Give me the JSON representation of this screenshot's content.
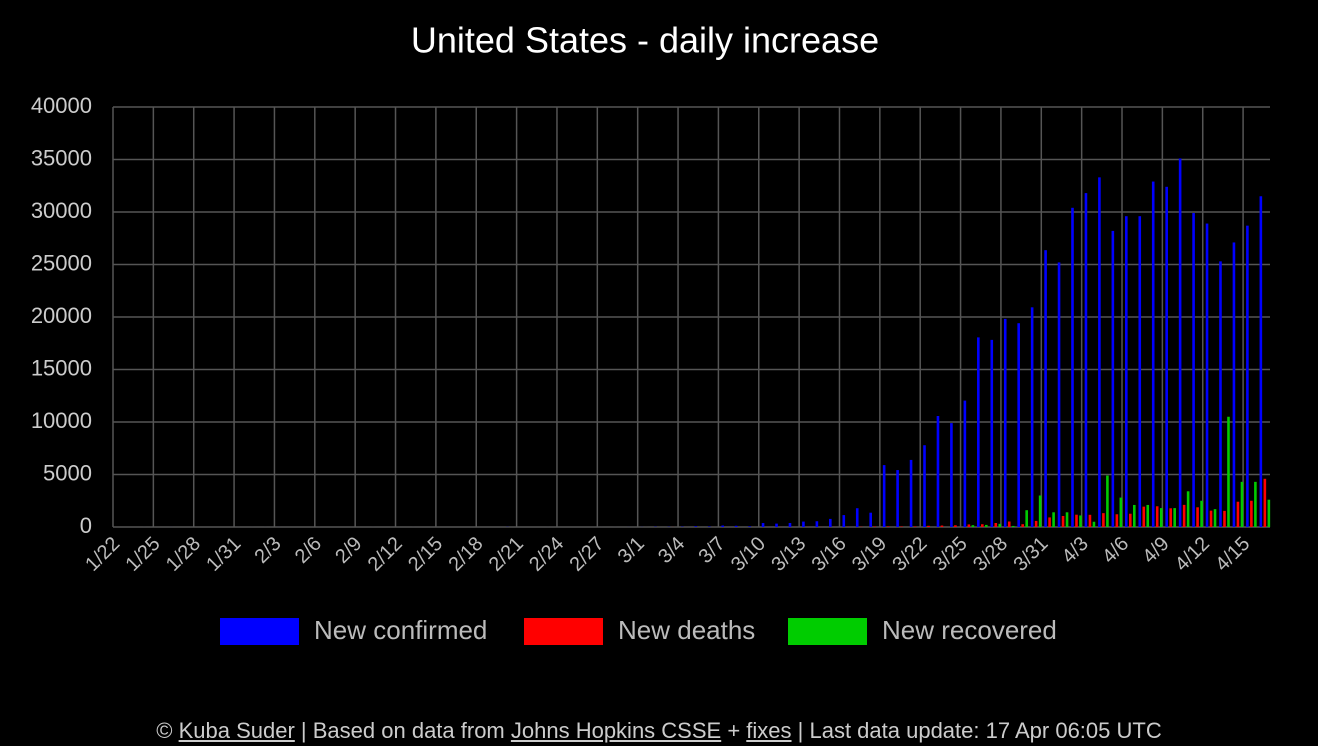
{
  "chart_data": {
    "type": "bar",
    "title": "United States - daily increase",
    "categories": [
      "1/22",
      null,
      null,
      "1/25",
      null,
      null,
      "1/28",
      null,
      null,
      "1/31",
      null,
      null,
      "2/3",
      null,
      null,
      "2/6",
      null,
      null,
      "2/9",
      null,
      null,
      "2/12",
      null,
      null,
      "2/15",
      null,
      null,
      "2/18",
      null,
      null,
      "2/21",
      null,
      null,
      "2/24",
      null,
      null,
      "2/27",
      null,
      null,
      "3/1",
      null,
      null,
      "3/4",
      null,
      null,
      "3/7",
      null,
      null,
      "3/10",
      null,
      null,
      "3/13",
      null,
      null,
      "3/16",
      null,
      null,
      "3/19",
      null,
      null,
      "3/22",
      null,
      null,
      "3/25",
      null,
      null,
      "3/28",
      null,
      null,
      "3/31",
      null,
      null,
      "4/3",
      null,
      null,
      "4/6",
      null,
      null,
      "4/9",
      null,
      null,
      "4/12",
      null,
      null,
      "4/15",
      null
    ],
    "series": [
      {
        "name": "New confirmed",
        "color": "#0000ff",
        "values": [
          0,
          0,
          1,
          0,
          3,
          0,
          0,
          0,
          0,
          1,
          1,
          1,
          3,
          0,
          0,
          1,
          0,
          0,
          0,
          1,
          0,
          0,
          1,
          0,
          0,
          0,
          0,
          0,
          0,
          13,
          0,
          0,
          1,
          0,
          0,
          0,
          1,
          1,
          4,
          8,
          23,
          20,
          31,
          68,
          45,
          140,
          116,
          65,
          376,
          322,
          382,
          516,
          548,
          772,
          1133,
          1789,
          1362,
          5894,
          5423,
          6389,
          7787,
          10571,
          9893,
          12038,
          18058,
          17821,
          19821,
          19408,
          20921,
          26365,
          25200,
          30400,
          31800,
          33300,
          28200,
          29600,
          29600,
          32900,
          32400,
          35100,
          29900,
          28900,
          25300,
          27100,
          28700,
          31500
        ]
      },
      {
        "name": "New deaths",
        "color": "#ff0000",
        "values": [
          0,
          0,
          0,
          0,
          0,
          0,
          0,
          0,
          0,
          0,
          0,
          0,
          0,
          0,
          0,
          0,
          0,
          0,
          0,
          0,
          0,
          0,
          0,
          0,
          0,
          0,
          0,
          0,
          0,
          0,
          0,
          0,
          0,
          0,
          0,
          0,
          0,
          0,
          0,
          1,
          1,
          5,
          3,
          1,
          3,
          3,
          1,
          4,
          6,
          8,
          7,
          11,
          8,
          9,
          18,
          23,
          41,
          51,
          49,
          46,
          114,
          139,
          165,
          246,
          264,
          381,
          524,
          265,
          580,
          912,
          1049,
          1172,
          1161,
          1320,
          1212,
          1264,
          1939,
          1973,
          1783,
          2108,
          1877,
          1557,
          1536,
          2408,
          2500,
          4591
        ]
      },
      {
        "name": "New recovered",
        "color": "#00cc00",
        "values": [
          0,
          0,
          0,
          0,
          0,
          0,
          0,
          0,
          0,
          0,
          0,
          0,
          0,
          0,
          0,
          0,
          0,
          0,
          0,
          0,
          0,
          0,
          0,
          0,
          0,
          0,
          0,
          0,
          0,
          0,
          0,
          0,
          0,
          0,
          0,
          0,
          0,
          0,
          0,
          0,
          0,
          0,
          0,
          0,
          0,
          0,
          0,
          0,
          0,
          0,
          0,
          0,
          0,
          0,
          0,
          0,
          0,
          0,
          0,
          0,
          0,
          0,
          0,
          171,
          200,
          300,
          100,
          1600,
          3000,
          1400,
          1400,
          1100,
          500,
          4900,
          2800,
          2100,
          2100,
          1800,
          1800,
          3400,
          2500,
          1700,
          10500,
          4300,
          4300,
          2600
        ]
      }
    ],
    "ylim": [
      0,
      40000
    ],
    "yticks": [
      0,
      5000,
      10000,
      15000,
      20000,
      25000,
      30000,
      35000,
      40000
    ],
    "grid": true
  },
  "footer": {
    "pieces": [
      "© ",
      "Kuba Suder",
      " | Based on data from ",
      "Johns Hopkins CSSE",
      " + ",
      "fixes",
      " | Last data update: 17 Apr 06:05 UTC"
    ]
  }
}
